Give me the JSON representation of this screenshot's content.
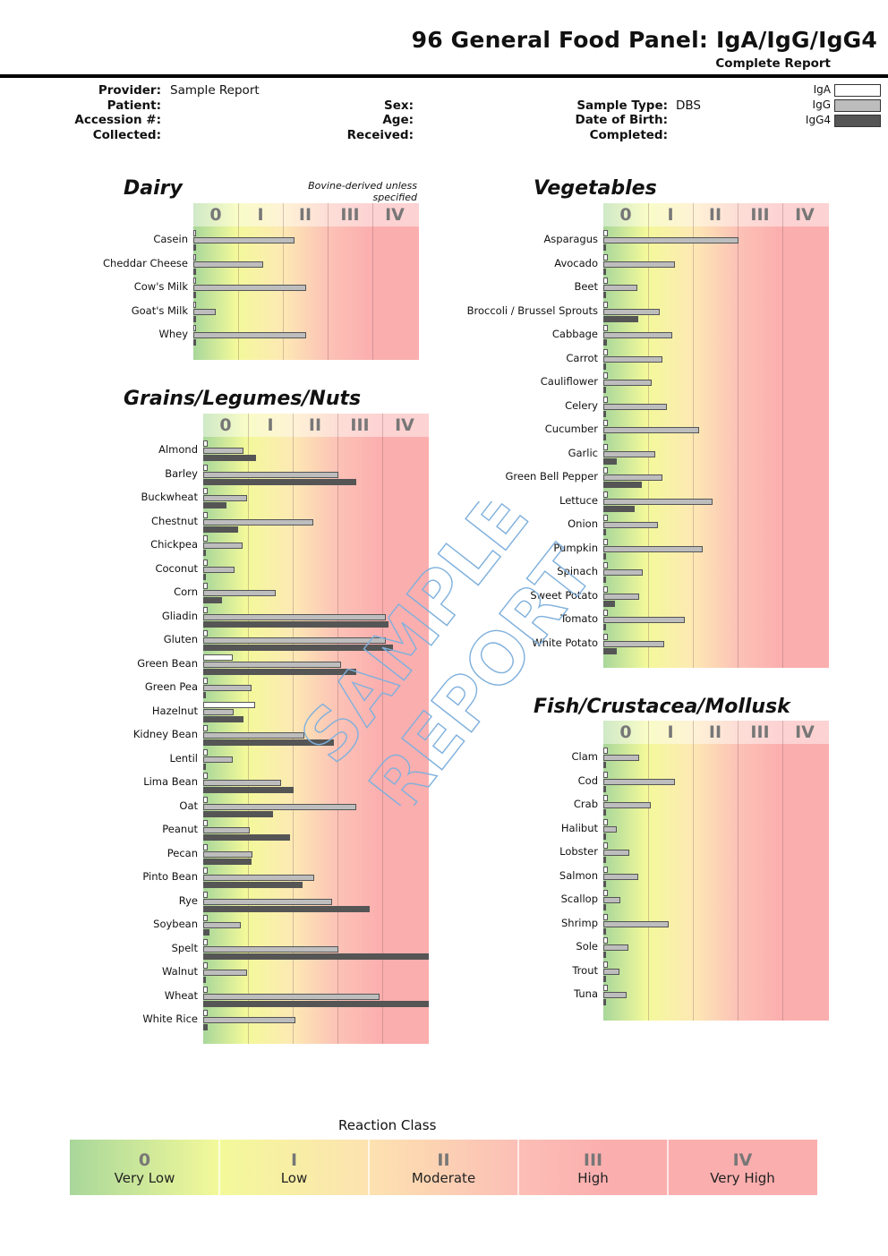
{
  "header": {
    "title": "96 General Food Panel: IgA/IgG/IgG4",
    "subtitle": "Complete Report"
  },
  "info": {
    "provider_label": "Provider:",
    "provider_value": "Sample Report",
    "patient_label": "Patient:",
    "accession_label": "Accession #:",
    "collected_label": "Collected:",
    "sex_label": "Sex:",
    "age_label": "Age:",
    "received_label": "Received:",
    "sample_type_label": "Sample Type:",
    "sample_type_value": "DBS",
    "dob_label": "Date of Birth:",
    "completed_label": "Completed:"
  },
  "legend": {
    "iga": "IgA",
    "igg": "IgG",
    "igg4": "IgG4",
    "colors": {
      "iga": "#ffffff",
      "igg": "#bdbdbd",
      "igg4": "#555555"
    }
  },
  "watermark": {
    "line1": "SAMPLE",
    "line2": "REPORT"
  },
  "classes": [
    "0",
    "I",
    "II",
    "III",
    "IV"
  ],
  "reaction": {
    "title": "Reaction Class",
    "items": [
      {
        "num": "0",
        "name": "Very Low"
      },
      {
        "num": "I",
        "name": "Low"
      },
      {
        "num": "II",
        "name": "Moderate"
      },
      {
        "num": "III",
        "name": "High"
      },
      {
        "num": "IV",
        "name": "Very High"
      }
    ]
  },
  "chart_data": [
    {
      "type": "bar",
      "orientation": "horizontal",
      "title": "Dairy",
      "note": "Bovine-derived unless specified",
      "xlim": [
        0,
        5
      ],
      "x_tick_labels": [
        "0",
        "I",
        "II",
        "III",
        "IV"
      ],
      "categories": [
        "Casein",
        "Cheddar Cheese",
        "Cow's Milk",
        "Goat's Milk",
        "Whey"
      ],
      "series": [
        {
          "name": "IgA",
          "values": [
            0.05,
            0.05,
            0.05,
            0.05,
            0.05
          ]
        },
        {
          "name": "IgG",
          "values": [
            2.25,
            1.55,
            2.5,
            0.5,
            2.5
          ]
        },
        {
          "name": "IgG4",
          "values": [
            0.02,
            0.02,
            0.02,
            0.02,
            0.02
          ]
        }
      ]
    },
    {
      "type": "bar",
      "orientation": "horizontal",
      "title": "Grains/Legumes/Nuts",
      "xlim": [
        0,
        5
      ],
      "x_tick_labels": [
        "0",
        "I",
        "II",
        "III",
        "IV"
      ],
      "categories": [
        "Almond",
        "Barley",
        "Buckwheat",
        "Chestnut",
        "Chickpea",
        "Coconut",
        "Corn",
        "Gliadin",
        "Gluten",
        "Green Bean",
        "Green Pea",
        "Hazelnut",
        "Kidney Bean",
        "Lentil",
        "Lima Bean",
        "Oat",
        "Peanut",
        "Pecan",
        "Pinto Bean",
        "Rye",
        "Soybean",
        "Spelt",
        "Walnut",
        "Wheat",
        "White Rice"
      ],
      "series": [
        {
          "name": "IgA",
          "values": [
            0.1,
            0.1,
            0.1,
            0.1,
            0.1,
            0.1,
            0.1,
            0.1,
            0.1,
            0.65,
            0.1,
            1.15,
            0.1,
            0.1,
            0.1,
            0.1,
            0.1,
            0.1,
            0.1,
            0.1,
            0.1,
            0.1,
            0.1,
            0.1,
            0.1
          ]
        },
        {
          "name": "IgG",
          "values": [
            0.9,
            3.0,
            0.97,
            2.45,
            0.87,
            0.7,
            1.6,
            4.05,
            4.05,
            3.05,
            1.08,
            0.67,
            2.25,
            0.65,
            1.72,
            3.4,
            1.03,
            1.1,
            2.47,
            2.85,
            0.84,
            3.0,
            0.97,
            3.9,
            2.05
          ]
        },
        {
          "name": "IgG4",
          "values": [
            1.17,
            3.4,
            0.52,
            0.78,
            0.02,
            0.02,
            0.42,
            4.1,
            4.2,
            3.4,
            0.02,
            0.9,
            2.9,
            0.02,
            2.0,
            1.55,
            1.92,
            1.08,
            2.2,
            3.7,
            0.13,
            5.0,
            0.02,
            5.0,
            0.1
          ]
        }
      ]
    },
    {
      "type": "bar",
      "orientation": "horizontal",
      "title": "Vegetables",
      "xlim": [
        0,
        5
      ],
      "x_tick_labels": [
        "0",
        "I",
        "II",
        "III",
        "IV"
      ],
      "categories": [
        "Asparagus",
        "Avocado",
        "Beet",
        "Broccoli / Brussel Sprouts",
        "Cabbage",
        "Carrot",
        "Cauliflower",
        "Celery",
        "Cucumber",
        "Garlic",
        "Green Bell Pepper",
        "Lettuce",
        "Onion",
        "Pumpkin",
        "Spinach",
        "Sweet Potato",
        "Tomato",
        "White Potato"
      ],
      "series": [
        {
          "name": "IgA",
          "values": [
            0.1,
            0.1,
            0.1,
            0.1,
            0.1,
            0.1,
            0.1,
            0.1,
            0.1,
            0.1,
            0.1,
            0.1,
            0.1,
            0.1,
            0.1,
            0.1,
            0.1,
            0.1
          ]
        },
        {
          "name": "IgG",
          "values": [
            3.0,
            1.58,
            0.75,
            1.25,
            1.52,
            1.3,
            1.08,
            1.4,
            2.12,
            1.15,
            1.3,
            2.42,
            1.22,
            2.2,
            0.88,
            0.8,
            1.8,
            1.35
          ]
        },
        {
          "name": "IgG4",
          "values": [
            0.02,
            0.02,
            0.02,
            0.78,
            0.08,
            0.02,
            0.02,
            0.02,
            0.02,
            0.3,
            0.85,
            0.7,
            0.02,
            0.02,
            0.02,
            0.25,
            0.02,
            0.3
          ]
        }
      ]
    },
    {
      "type": "bar",
      "orientation": "horizontal",
      "title": "Fish/Crustacea/Mollusk",
      "xlim": [
        0,
        5
      ],
      "x_tick_labels": [
        "0",
        "I",
        "II",
        "III",
        "IV"
      ],
      "categories": [
        "Clam",
        "Cod",
        "Crab",
        "Halibut",
        "Lobster",
        "Salmon",
        "Scallop",
        "Shrimp",
        "Sole",
        "Trout",
        "Tuna"
      ],
      "series": [
        {
          "name": "IgA",
          "values": [
            0.1,
            0.1,
            0.1,
            0.1,
            0.1,
            0.1,
            0.1,
            0.1,
            0.1,
            0.1,
            0.1
          ]
        },
        {
          "name": "IgG",
          "values": [
            0.8,
            1.58,
            1.05,
            0.3,
            0.58,
            0.77,
            0.38,
            1.45,
            0.55,
            0.35,
            0.52
          ]
        },
        {
          "name": "IgG4",
          "values": [
            0.02,
            0.02,
            0.02,
            0.02,
            0.02,
            0.02,
            0.02,
            0.02,
            0.02,
            0.02,
            0.02
          ]
        }
      ]
    }
  ]
}
